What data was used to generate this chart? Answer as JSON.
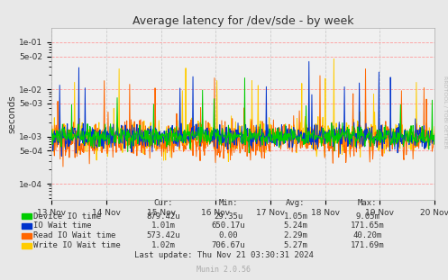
{
  "title": "Average latency for /dev/sde - by week",
  "ylabel": "seconds",
  "yticks": [
    0.0001,
    0.0005,
    0.001,
    0.005,
    0.01,
    0.05,
    0.1
  ],
  "ytick_labels": [
    "1e-04",
    "5e-04",
    "1e-03",
    "5e-03",
    "1e-02",
    "5e-02",
    "1e-01"
  ],
  "background_color": "#e8e8e8",
  "plot_bg_color": "#f0f0f0",
  "grid_color_h": "#ff9999",
  "grid_color_v": "#cccccc",
  "series": [
    {
      "label": "Device IO time",
      "color": "#00cc00",
      "zorder": 4,
      "lw": 0.7
    },
    {
      "label": "IO Wait time",
      "color": "#0033cc",
      "zorder": 3,
      "lw": 0.7
    },
    {
      "label": "Read IO Wait time",
      "color": "#ff6600",
      "zorder": 2,
      "lw": 0.7
    },
    {
      "label": "Write IO Wait time",
      "color": "#ffcc00",
      "zorder": 1,
      "lw": 0.7
    }
  ],
  "legend_stats": [
    {
      "label": "Device IO time",
      "cur": "879.42u",
      "min": "29.35u",
      "avg": "1.05m",
      "max": "9.05m"
    },
    {
      "label": "IO Wait time",
      "cur": "1.01m",
      "min": "650.17u",
      "avg": "5.24m",
      "max": "171.65m"
    },
    {
      "label": "Read IO Wait time",
      "cur": "573.42u",
      "min": "0.00",
      "avg": "2.29m",
      "max": "40.20m"
    },
    {
      "label": "Write IO Wait time",
      "cur": "1.02m",
      "min": "706.67u",
      "avg": "5.27m",
      "max": "171.69m"
    }
  ],
  "last_update": "Last update: Thu Nov 21 03:30:31 2024",
  "munin_version": "Munin 2.0.56",
  "x_tick_labels": [
    "13 Nov",
    "14 Nov",
    "15 Nov",
    "16 Nov",
    "17 Nov",
    "18 Nov",
    "19 Nov",
    "20 Nov"
  ],
  "rrdtool_label": "RRDTOOL / TOBI OETIKER",
  "n_points": 800
}
